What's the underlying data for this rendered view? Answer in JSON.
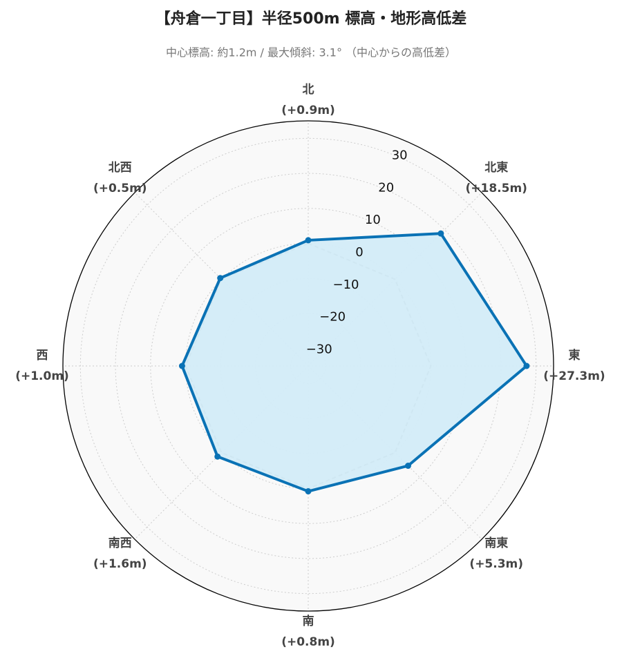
{
  "chart_data": {
    "type": "radar",
    "title": "【舟倉一丁目】半径500m 標高・地形高低差",
    "subtitle": "中心標高: 約1.2m / 最大傾斜: 3.1° （中心からの高低差）",
    "categories": [
      "北",
      "北東",
      "東",
      "南東",
      "南",
      "南西",
      "西",
      "北西"
    ],
    "series": [
      {
        "color": "#0a72b5",
        "fill": "#d3ecf8",
        "values": [
          0.9,
          18.5,
          27.3,
          5.3,
          0.8,
          1.6,
          1.0,
          0.5
        ],
        "value_labels": [
          "(+0.9m)",
          "(+18.5m)",
          "(+27.3m)",
          "(+5.3m)",
          "(+0.8m)",
          "(+1.6m)",
          "(+1.0m)",
          "(+0.5m)"
        ]
      }
    ],
    "baseline": 0,
    "ylim": [
      -35,
      35
    ],
    "yticks": [
      {
        "value": -30,
        "label": "−30"
      },
      {
        "value": -20,
        "label": "−20"
      },
      {
        "value": -10,
        "label": "−10"
      },
      0,
      10,
      20,
      30
    ],
    "grid": true
  }
}
